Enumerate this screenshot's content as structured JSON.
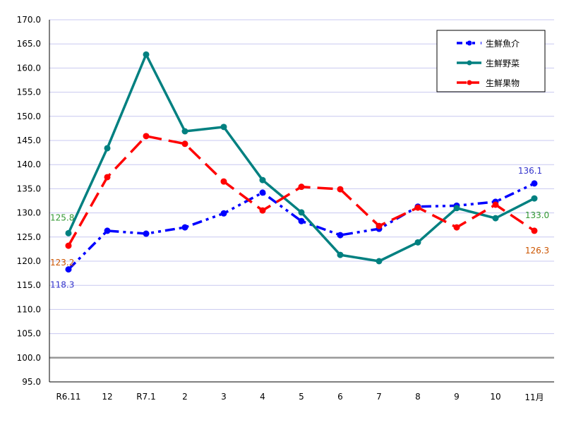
{
  "chart_data": {
    "type": "line",
    "title": "",
    "xlabel": "",
    "ylabel": "",
    "ylim": [
      95,
      170
    ],
    "yticks": [
      "95.0",
      "100.0",
      "105.0",
      "110.0",
      "115.0",
      "120.0",
      "125.0",
      "130.0",
      "135.0",
      "140.0",
      "145.0",
      "150.0",
      "155.0",
      "160.0",
      "165.0",
      "170.0"
    ],
    "categories": [
      "R6.11",
      "12",
      "R7.1",
      "2",
      "3",
      "4",
      "5",
      "6",
      "7",
      "8",
      "9",
      "10",
      "11月"
    ],
    "grid": true,
    "legend_position": "top-right",
    "reference_line": 100,
    "series": [
      {
        "name": "生鮮魚介",
        "color": "#0000ff",
        "dash": "dash-dot-dot",
        "values": [
          118.3,
          126.3,
          125.7,
          127.0,
          129.9,
          134.2,
          128.3,
          125.4,
          126.7,
          131.3,
          131.5,
          132.3,
          136.1
        ],
        "labels": {
          "first": "118.3",
          "last": "136.1"
        },
        "label_color": "#3333cc"
      },
      {
        "name": "生鮮野菜",
        "color": "#008080",
        "dash": "solid",
        "values": [
          125.8,
          143.4,
          162.8,
          146.9,
          147.8,
          136.8,
          130.1,
          121.3,
          120.0,
          123.9,
          131.0,
          128.9,
          133.0
        ],
        "labels": {
          "first": "125.8",
          "last": "133.0"
        },
        "label_color": "#339933"
      },
      {
        "name": "生鮮果物",
        "color": "#ff0000",
        "dash": "long-dash",
        "values": [
          123.2,
          137.4,
          145.9,
          144.3,
          136.5,
          130.5,
          135.4,
          134.9,
          127.3,
          131.1,
          127.0,
          131.7,
          126.3
        ],
        "labels": {
          "first": "123.2",
          "last": "126.3"
        },
        "label_color": "#cc5500"
      }
    ]
  }
}
